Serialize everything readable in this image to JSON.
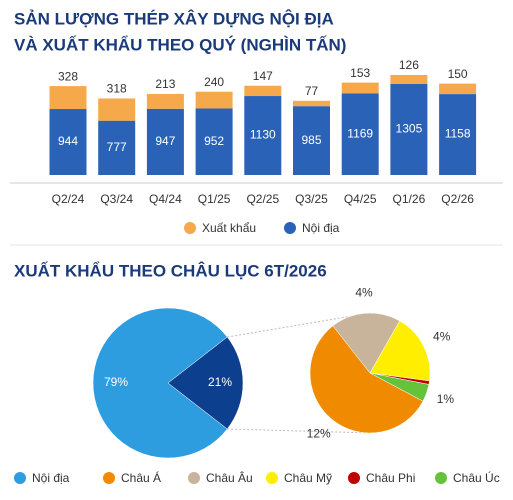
{
  "chart_data": [
    {
      "type": "stacked-bar",
      "title": [
        "SẢN LƯỢNG THÉP XÂY DỰNG NỘI ĐỊA",
        "VÀ XUẤT KHẨU THEO QUÝ (NGHÌN TẤN)"
      ],
      "categories": [
        "Q2/24",
        "Q3/24",
        "Q4/24",
        "Q1/25",
        "Q2/25",
        "Q3/25",
        "Q4/25",
        "Q1/26",
        "Q2/26"
      ],
      "series": [
        {
          "name": "Nội địa",
          "color": "#2a62b8",
          "values": [
            944,
            777,
            947,
            952,
            1130,
            985,
            1169,
            1305,
            1158
          ]
        },
        {
          "name": "Xuất khẩu",
          "color": "#f5a94a",
          "values": [
            328,
            318,
            213,
            240,
            147,
            77,
            153,
            126,
            150
          ]
        }
      ]
    },
    {
      "type": "pie-of-pie",
      "title": "XUẤT KHẨU THEO CHÂU LỤC 6T/2026",
      "main": {
        "categories": [
          "Nội địa",
          null
        ],
        "values": [
          79,
          21
        ],
        "value_labels": [
          "79%",
          "21%"
        ],
        "colors": [
          "#2d9de0",
          "#0d3f8f"
        ]
      },
      "detail": {
        "categories": [
          "Châu Á",
          "Châu Âu",
          "Châu Mỹ",
          "Châu Phi",
          "Châu Úc"
        ],
        "values": [
          12,
          4,
          4,
          0.2,
          1
        ],
        "value_labels": [
          "12%",
          "4%",
          "4%",
          null,
          "1%"
        ],
        "colors": [
          "#f08a00",
          "#c8b49a",
          "#ffee00",
          "#c00000",
          "#66c23a"
        ]
      }
    }
  ]
}
